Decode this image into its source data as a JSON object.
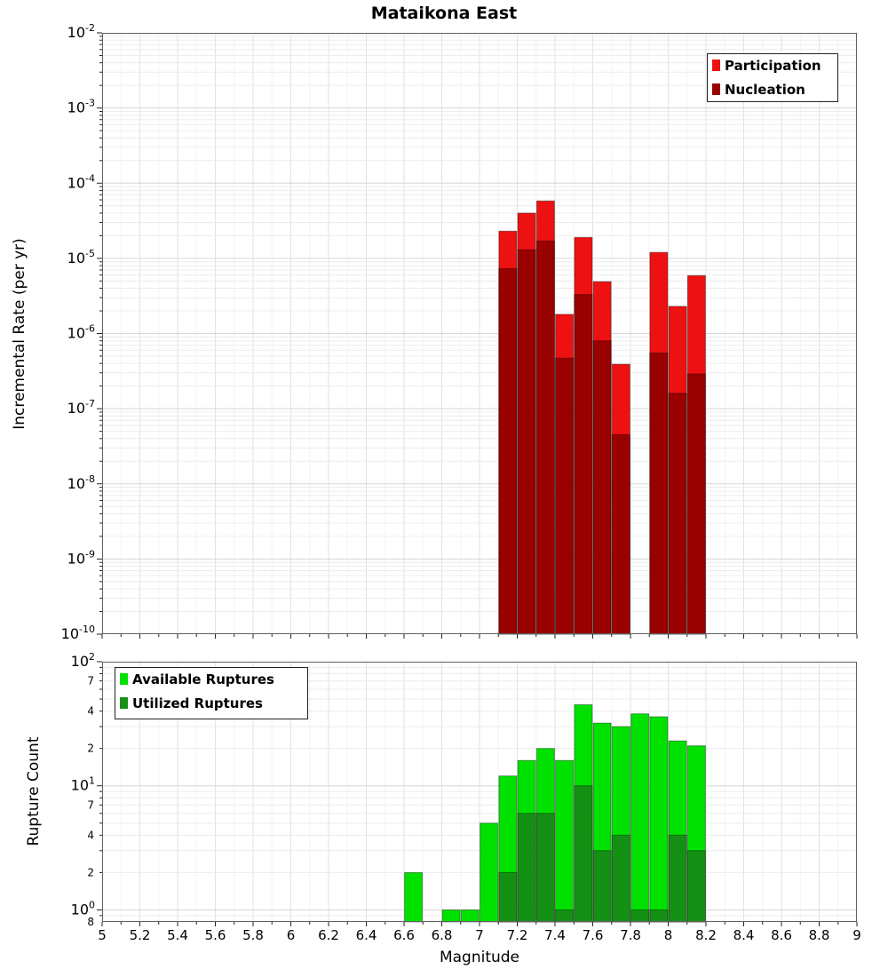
{
  "title": "Mataikona East",
  "axes": {
    "x_label": "Magnitude",
    "x_tick_labels": [
      "5",
      "5.2",
      "5.4",
      "5.6",
      "5.8",
      "6",
      "6.2",
      "6.4",
      "6.6",
      "6.8",
      "7",
      "7.2",
      "7.4",
      "7.6",
      "7.8",
      "8",
      "8.2",
      "8.4",
      "8.6",
      "8.8",
      "9"
    ],
    "top_y_label": "Incremental Rate (per yr)",
    "top_y_tick_exponents": [
      -2,
      -3,
      -4,
      -5,
      -6,
      -7,
      -8,
      -9,
      -10
    ],
    "bottom_y_label": "Rupture Count",
    "bottom_y_major_exponents": [
      2,
      1,
      0
    ],
    "bottom_y_minor_ticks": [
      {
        "value": 70,
        "label": "7"
      },
      {
        "value": 40,
        "label": "4"
      },
      {
        "value": 20,
        "label": "2"
      },
      {
        "value": 7,
        "label": "7"
      },
      {
        "value": 4,
        "label": "4"
      },
      {
        "value": 2,
        "label": "2"
      },
      {
        "value": 0.8,
        "label": "8"
      }
    ]
  },
  "chart_data": [
    {
      "type": "bar",
      "panel": "rate",
      "title": "Mataikona East",
      "xlabel": "Magnitude",
      "ylabel": "Incremental Rate (per yr)",
      "yscale": "log",
      "xlim": [
        5,
        9
      ],
      "ylim": [
        1e-10,
        0.01
      ],
      "bin_width": 0.1,
      "grid": true,
      "legend_position": "top-right",
      "categories": [
        7.15,
        7.25,
        7.35,
        7.45,
        7.55,
        7.65,
        7.75,
        7.95,
        8.05,
        8.15
      ],
      "series": [
        {
          "name": "Participation",
          "color": "#ee1111",
          "values": [
            2.3e-05,
            4e-05,
            5.8e-05,
            1.8e-06,
            1.9e-05,
            4.9e-06,
            3.9e-07,
            1.2e-05,
            2.3e-06,
            5.9e-06
          ]
        },
        {
          "name": "Nucleation",
          "color": "#990000",
          "values": [
            7.3e-06,
            1.3e-05,
            1.7e-05,
            4.7e-07,
            3.3e-06,
            8e-07,
            4.5e-08,
            5.5e-07,
            1.6e-07,
            2.9e-07
          ]
        }
      ]
    },
    {
      "type": "bar",
      "panel": "count",
      "xlabel": "Magnitude",
      "ylabel": "Rupture Count",
      "yscale": "log",
      "xlim": [
        5,
        9
      ],
      "ylim": [
        0.8,
        100
      ],
      "bin_width": 0.1,
      "grid": true,
      "legend_position": "top-left",
      "categories": [
        6.65,
        6.85,
        6.95,
        7.05,
        7.15,
        7.25,
        7.35,
        7.45,
        7.55,
        7.65,
        7.75,
        7.85,
        7.95,
        8.05,
        8.15
      ],
      "series": [
        {
          "name": "Available Ruptures",
          "color": "#00e100",
          "values": [
            2,
            1,
            1,
            5,
            12,
            16,
            20,
            16,
            45,
            32,
            30,
            38,
            36,
            23,
            21
          ]
        },
        {
          "name": "Utilized Ruptures",
          "color": "#149114",
          "values": [
            0,
            0,
            0,
            0,
            2,
            6,
            6,
            1,
            10,
            3,
            4,
            1,
            1,
            4,
            3
          ]
        }
      ]
    }
  ]
}
